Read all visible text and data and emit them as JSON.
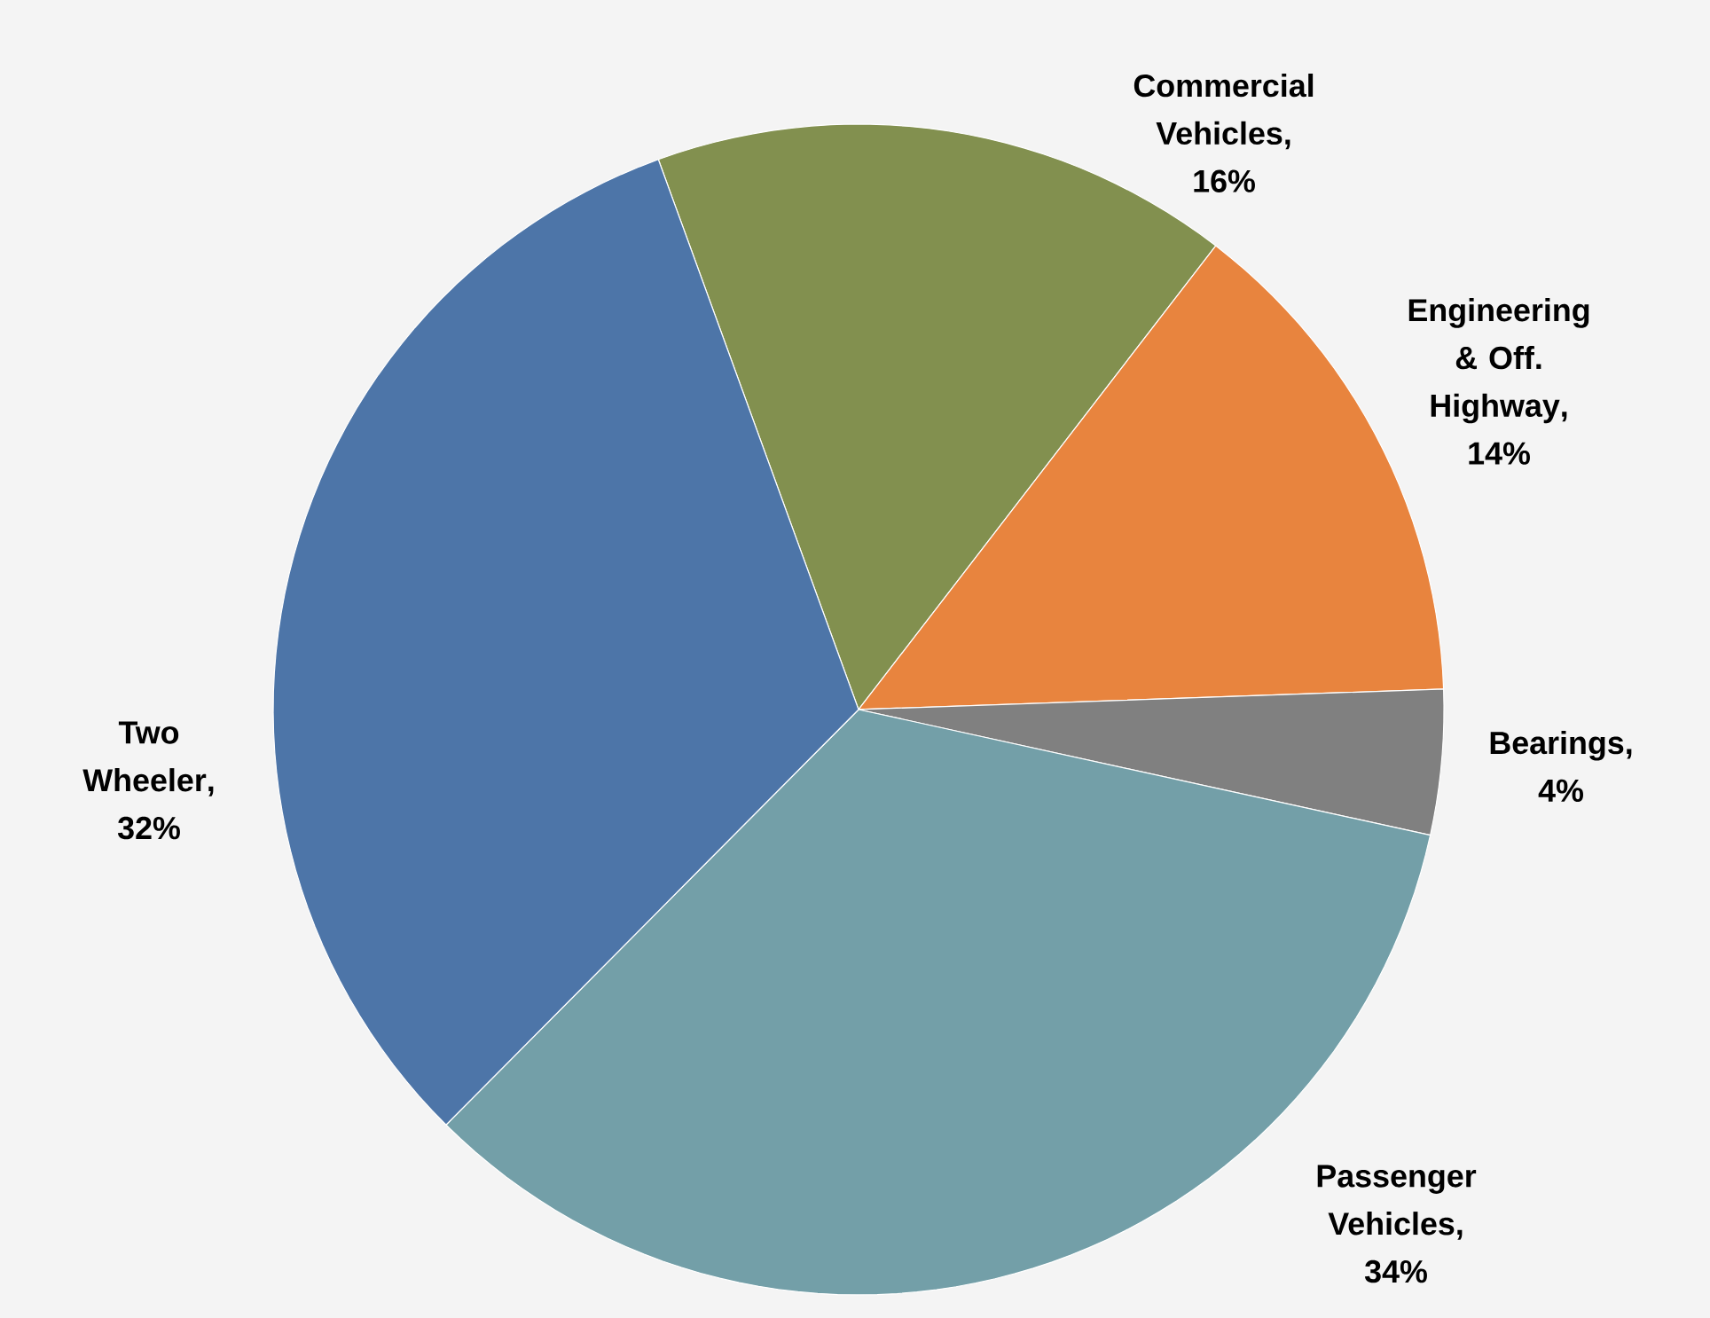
{
  "chart_data": {
    "type": "pie",
    "categories": [
      "Commercial Vehicles",
      "Engineering & Off. Highway",
      "Bearings",
      "Passenger Vehicles",
      "Two Wheeler"
    ],
    "values": [
      16,
      14,
      4,
      34,
      32
    ],
    "colors": [
      "#82904f",
      "#e8843e",
      "#808080",
      "#739fa8",
      "#4d75a8"
    ],
    "value_labels": [
      ", 16%",
      ", 14%",
      ", 4%",
      ", 34%",
      ", 32%"
    ],
    "legend": false
  }
}
